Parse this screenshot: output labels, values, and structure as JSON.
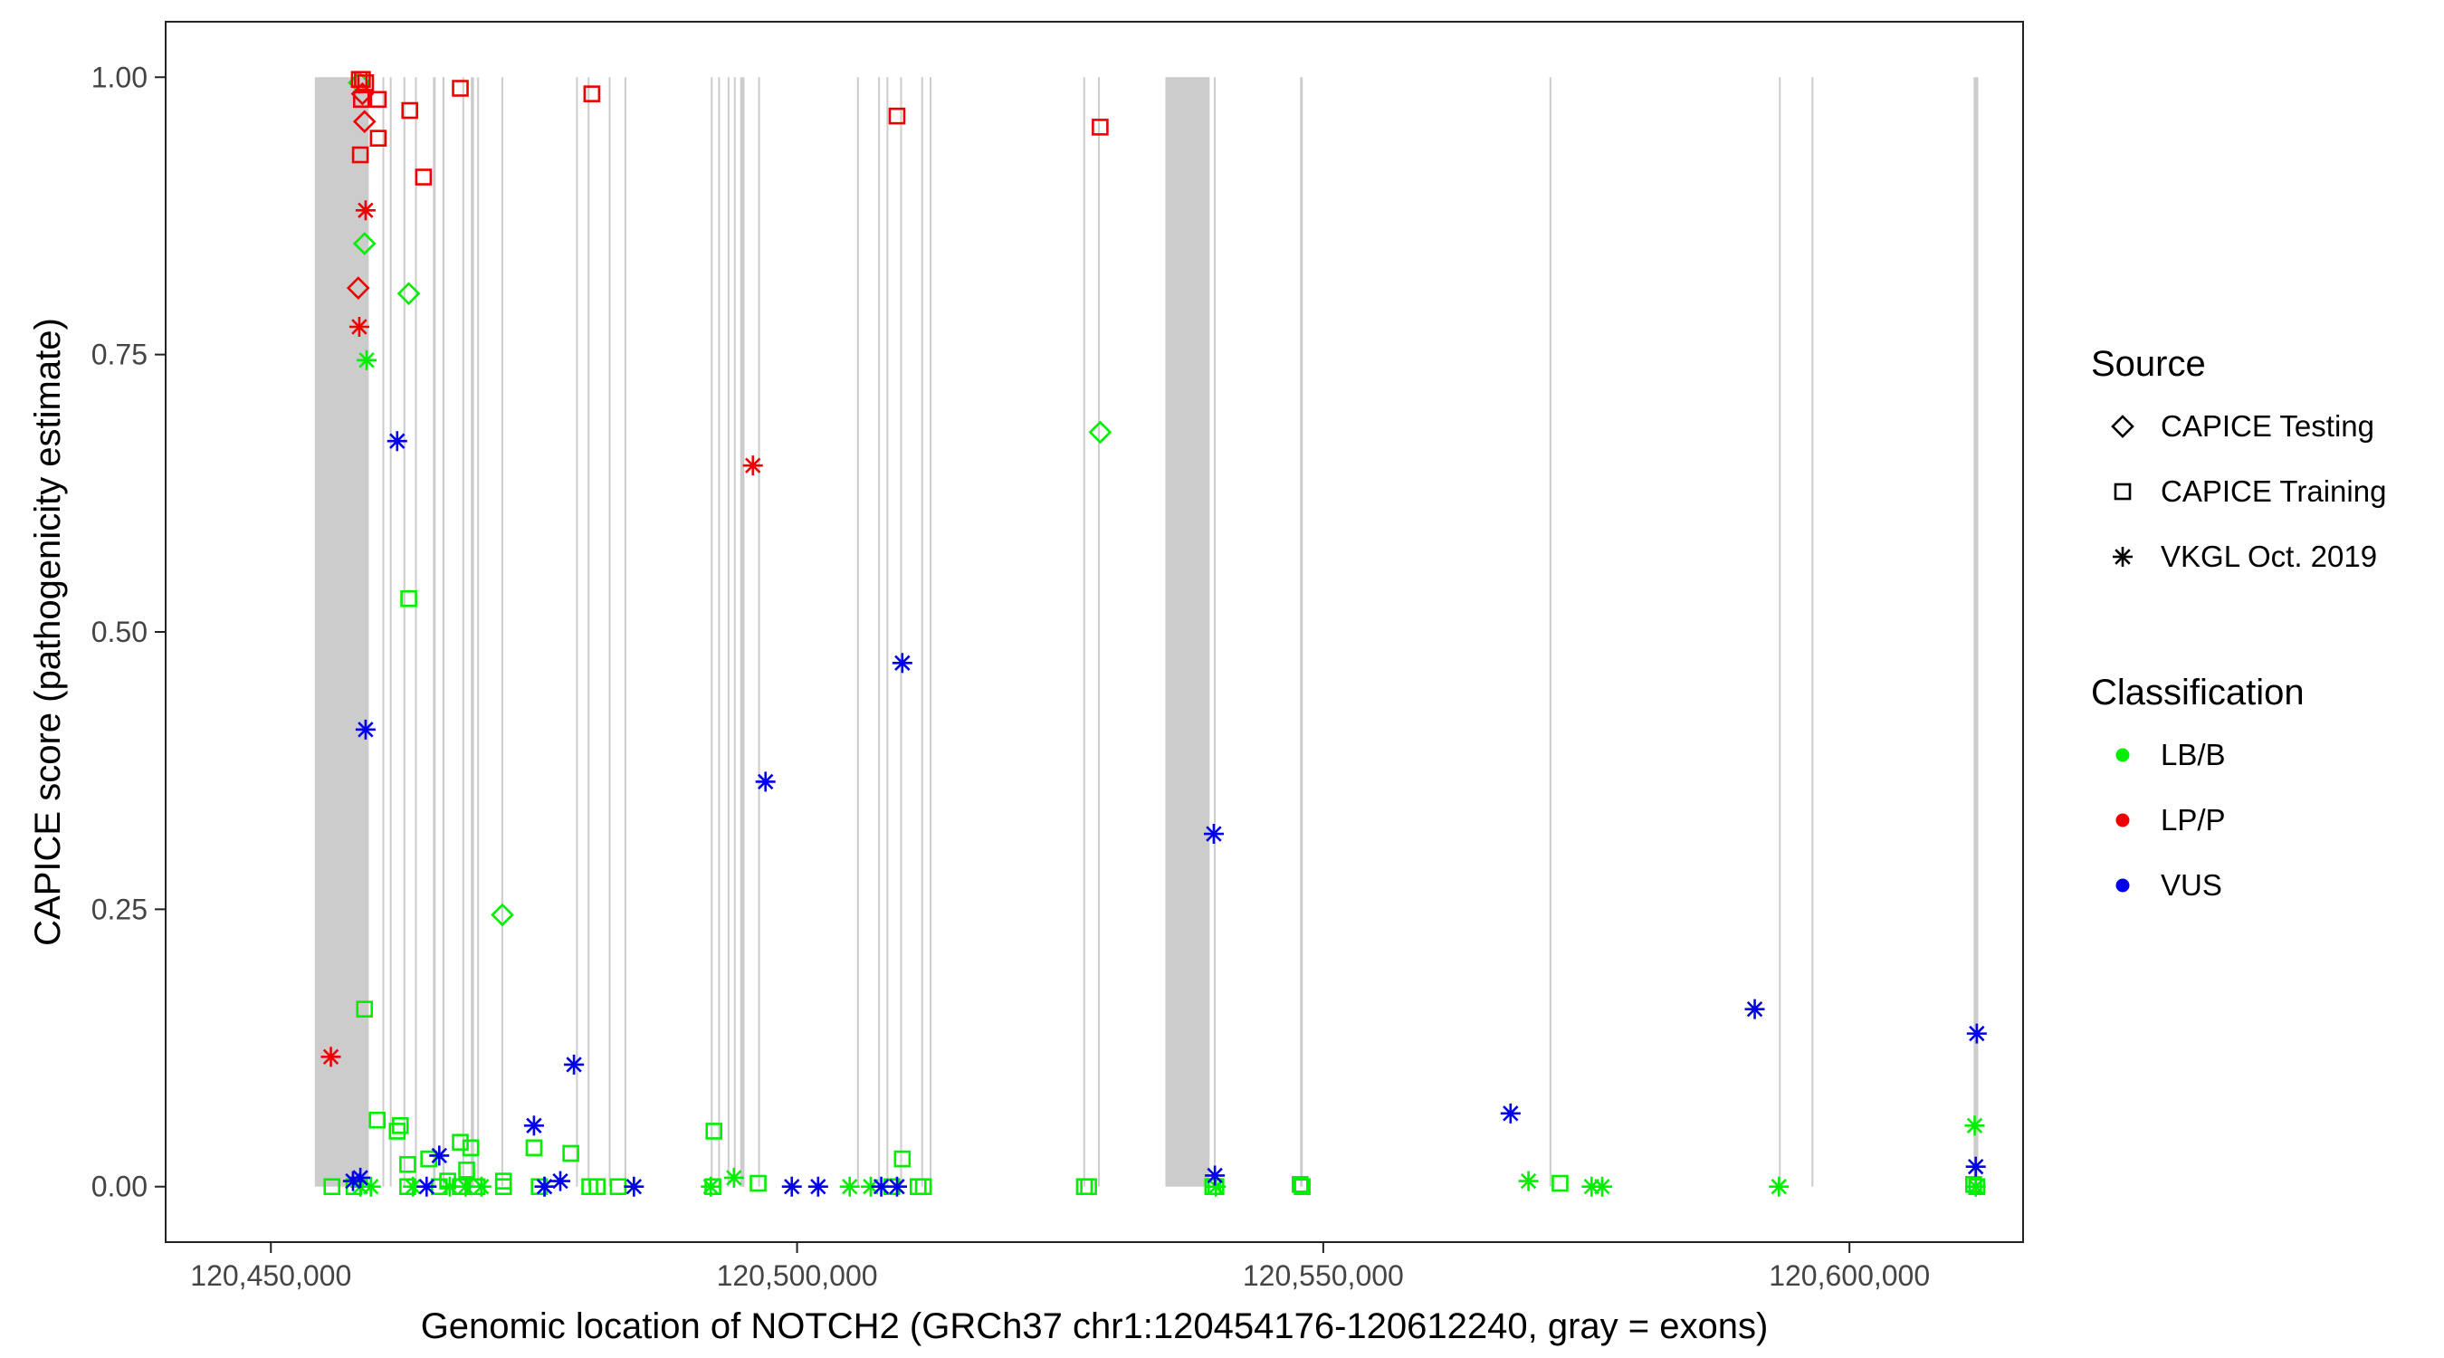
{
  "colors": {
    "LB/B": "#00ee00",
    "LP/P": "#ee0000",
    "VUS": "#0000ee",
    "exon": "#cccccc",
    "axis": "#222222",
    "tick_text": "#444444"
  },
  "chart_data": {
    "type": "scatter",
    "xlabel": "Genomic location of NOTCH2 (GRCh37 chr1:120454176-120612240, gray = exons)",
    "ylabel": "CAPICE score (pathogenicity estimate)",
    "xlim": [
      120440000,
      120616500
    ],
    "ylim": [
      -0.05,
      1.05
    ],
    "xticks": [
      {
        "value": 120450000,
        "label": "120,450,000"
      },
      {
        "value": 120500000,
        "label": "120,500,000"
      },
      {
        "value": 120550000,
        "label": "120,550,000"
      },
      {
        "value": 120600000,
        "label": "120,600,000"
      }
    ],
    "yticks": [
      {
        "value": 0,
        "label": "0.00"
      },
      {
        "value": 0.25,
        "label": "0.25"
      },
      {
        "value": 0.5,
        "label": "0.50"
      },
      {
        "value": 0.75,
        "label": "0.75"
      },
      {
        "value": 1,
        "label": "1.00"
      }
    ],
    "grid": false,
    "legend": {
      "placement": "right",
      "source_title": "Source",
      "source_items": [
        {
          "label": "CAPICE Testing",
          "shape": "diamond"
        },
        {
          "label": "CAPICE Training",
          "shape": "square"
        },
        {
          "label": "VKGL Oct. 2019",
          "shape": "asterisk"
        }
      ],
      "class_title": "Classification",
      "class_items": [
        {
          "label": "LB/B"
        },
        {
          "label": "LP/P"
        },
        {
          "label": "VUS"
        }
      ]
    },
    "exons": [
      [
        120454176,
        120459300
      ],
      [
        120460600,
        120460750
      ],
      [
        120461300,
        120461450
      ],
      [
        120462600,
        120462750
      ],
      [
        120463700,
        120463850
      ],
      [
        120465400,
        120465650
      ],
      [
        120466300,
        120466500
      ],
      [
        120468200,
        120468350
      ],
      [
        120469000,
        120469300
      ],
      [
        120469600,
        120469750
      ],
      [
        120471900,
        120472050
      ],
      [
        120479000,
        120479150
      ],
      [
        120480100,
        120480250
      ],
      [
        120482100,
        120482250
      ],
      [
        120483600,
        120483750
      ],
      [
        120491800,
        120491950
      ],
      [
        120492500,
        120492650
      ],
      [
        120493400,
        120493550
      ],
      [
        120494000,
        120494150
      ],
      [
        120494600,
        120495000
      ],
      [
        120496300,
        120496450
      ],
      [
        120505700,
        120505850
      ],
      [
        120507700,
        120507850
      ],
      [
        120508500,
        120508650
      ],
      [
        120509800,
        120509950
      ],
      [
        120511800,
        120511950
      ],
      [
        120512600,
        120512750
      ],
      [
        120527200,
        120527350
      ],
      [
        120528600,
        120528750
      ],
      [
        120535000,
        120539200
      ],
      [
        120539600,
        120539750
      ],
      [
        120547800,
        120548050
      ],
      [
        120571500,
        120571650
      ],
      [
        120593300,
        120593450
      ],
      [
        120596400,
        120596550
      ],
      [
        120611800,
        120612240
      ]
    ],
    "series": [
      {
        "name": "CAPICE Testing",
        "shape": "diamond",
        "points": [
          {
            "x": 120458400,
            "y": 0.995,
            "c": "LB/B"
          },
          {
            "x": 120458700,
            "y": 0.985,
            "c": "LP/P"
          },
          {
            "x": 120458900,
            "y": 0.96,
            "c": "LP/P"
          },
          {
            "x": 120458300,
            "y": 0.81,
            "c": "LP/P"
          },
          {
            "x": 120458900,
            "y": 0.85,
            "c": "LB/B"
          },
          {
            "x": 120463100,
            "y": 0.805,
            "c": "LB/B"
          },
          {
            "x": 120472000,
            "y": 0.245,
            "c": "LB/B"
          },
          {
            "x": 120528800,
            "y": 0.68,
            "c": "LB/B"
          }
        ]
      },
      {
        "name": "CAPICE Training",
        "shape": "square",
        "points": [
          {
            "x": 120458400,
            "y": 0.998,
            "c": "LP/P"
          },
          {
            "x": 120458700,
            "y": 0.998,
            "c": "LP/P"
          },
          {
            "x": 120459000,
            "y": 0.995,
            "c": "LP/P"
          },
          {
            "x": 120458600,
            "y": 0.98,
            "c": "LP/P"
          },
          {
            "x": 120460200,
            "y": 0.98,
            "c": "LP/P"
          },
          {
            "x": 120463200,
            "y": 0.97,
            "c": "LP/P"
          },
          {
            "x": 120460200,
            "y": 0.945,
            "c": "LP/P"
          },
          {
            "x": 120458500,
            "y": 0.93,
            "c": "LP/P"
          },
          {
            "x": 120464500,
            "y": 0.91,
            "c": "LP/P"
          },
          {
            "x": 120468000,
            "y": 0.99,
            "c": "LP/P"
          },
          {
            "x": 120480500,
            "y": 0.985,
            "c": "LP/P"
          },
          {
            "x": 120509500,
            "y": 0.965,
            "c": "LP/P"
          },
          {
            "x": 120528800,
            "y": 0.955,
            "c": "LP/P"
          },
          {
            "x": 120458900,
            "y": 0.16,
            "c": "LB/B"
          },
          {
            "x": 120463100,
            "y": 0.53,
            "c": "LB/B"
          },
          {
            "x": 120460100,
            "y": 0.06,
            "c": "LB/B"
          },
          {
            "x": 120462000,
            "y": 0.05,
            "c": "LB/B"
          },
          {
            "x": 120462300,
            "y": 0.055,
            "c": "LB/B"
          },
          {
            "x": 120463000,
            "y": 0.02,
            "c": "LB/B"
          },
          {
            "x": 120465000,
            "y": 0.025,
            "c": "LB/B"
          },
          {
            "x": 120468000,
            "y": 0.04,
            "c": "LB/B"
          },
          {
            "x": 120469000,
            "y": 0.035,
            "c": "LB/B"
          },
          {
            "x": 120468600,
            "y": 0.015,
            "c": "LB/B"
          },
          {
            "x": 120475000,
            "y": 0.035,
            "c": "LB/B"
          },
          {
            "x": 120478500,
            "y": 0.03,
            "c": "LB/B"
          },
          {
            "x": 120492100,
            "y": 0.05,
            "c": "LB/B"
          },
          {
            "x": 120510000,
            "y": 0.025,
            "c": "LB/B"
          },
          {
            "x": 120466800,
            "y": 0.005,
            "c": "LB/B"
          },
          {
            "x": 120472100,
            "y": 0.005,
            "c": "LB/B"
          },
          {
            "x": 120455800,
            "y": 0.0,
            "c": "LB/B"
          },
          {
            "x": 120457900,
            "y": 0.0,
            "c": "LB/B"
          },
          {
            "x": 120463000,
            "y": 0.0,
            "c": "LB/B"
          },
          {
            "x": 120466000,
            "y": 0.0,
            "c": "LB/B"
          },
          {
            "x": 120468000,
            "y": 0.0,
            "c": "LB/B"
          },
          {
            "x": 120469600,
            "y": 0.0,
            "c": "LB/B"
          },
          {
            "x": 120472100,
            "y": 0.0,
            "c": "LB/B"
          },
          {
            "x": 120475500,
            "y": 0.0,
            "c": "LB/B"
          },
          {
            "x": 120480300,
            "y": 0.0,
            "c": "LB/B"
          },
          {
            "x": 120481000,
            "y": 0.0,
            "c": "LB/B"
          },
          {
            "x": 120483000,
            "y": 0.0,
            "c": "LB/B"
          },
          {
            "x": 120492000,
            "y": 0.0,
            "c": "LB/B"
          },
          {
            "x": 120496300,
            "y": 0.003,
            "c": "LB/B"
          },
          {
            "x": 120509000,
            "y": 0.0,
            "c": "LB/B"
          },
          {
            "x": 120511500,
            "y": 0.0,
            "c": "LB/B"
          },
          {
            "x": 120512000,
            "y": 0.0,
            "c": "LB/B"
          },
          {
            "x": 120527300,
            "y": 0.0,
            "c": "LB/B"
          },
          {
            "x": 120527700,
            "y": 0.0,
            "c": "LB/B"
          },
          {
            "x": 120539500,
            "y": 0.0,
            "c": "LB/B"
          },
          {
            "x": 120539800,
            "y": 0.0,
            "c": "LB/B"
          },
          {
            "x": 120547800,
            "y": 0.002,
            "c": "LB/B"
          },
          {
            "x": 120548000,
            "y": 0.0,
            "c": "LB/B"
          },
          {
            "x": 120572500,
            "y": 0.003,
            "c": "LB/B"
          },
          {
            "x": 120611800,
            "y": 0.002,
            "c": "LB/B"
          },
          {
            "x": 120612100,
            "y": 0.0,
            "c": "LB/B"
          }
        ]
      },
      {
        "name": "VKGL Oct. 2019",
        "shape": "asterisk",
        "points": [
          {
            "x": 120459000,
            "y": 0.88,
            "c": "LP/P"
          },
          {
            "x": 120458400,
            "y": 0.775,
            "c": "LP/P"
          },
          {
            "x": 120495800,
            "y": 0.65,
            "c": "LP/P"
          },
          {
            "x": 120455700,
            "y": 0.117,
            "c": "LP/P"
          },
          {
            "x": 120459100,
            "y": 0.745,
            "c": "LB/B"
          },
          {
            "x": 120494000,
            "y": 0.008,
            "c": "LB/B"
          },
          {
            "x": 120569500,
            "y": 0.005,
            "c": "LB/B"
          },
          {
            "x": 120575500,
            "y": 0.0,
            "c": "LB/B"
          },
          {
            "x": 120576500,
            "y": 0.0,
            "c": "LB/B"
          },
          {
            "x": 120593300,
            "y": 0.0,
            "c": "LB/B"
          },
          {
            "x": 120611900,
            "y": 0.055,
            "c": "LB/B"
          },
          {
            "x": 120458500,
            "y": 0.0,
            "c": "LB/B"
          },
          {
            "x": 120459500,
            "y": 0.0,
            "c": "LB/B"
          },
          {
            "x": 120463500,
            "y": 0.0,
            "c": "LB/B"
          },
          {
            "x": 120467000,
            "y": 0.0,
            "c": "LB/B"
          },
          {
            "x": 120468500,
            "y": 0.0,
            "c": "LB/B"
          },
          {
            "x": 120470000,
            "y": 0.0,
            "c": "LB/B"
          },
          {
            "x": 120476000,
            "y": 0.0,
            "c": "LB/B"
          },
          {
            "x": 120491800,
            "y": 0.0,
            "c": "LB/B"
          },
          {
            "x": 120505000,
            "y": 0.0,
            "c": "LB/B"
          },
          {
            "x": 120507000,
            "y": 0.0,
            "c": "LB/B"
          },
          {
            "x": 120539800,
            "y": 0.0,
            "c": "LB/B"
          },
          {
            "x": 120612000,
            "y": 0.0,
            "c": "LB/B"
          },
          {
            "x": 120462000,
            "y": 0.672,
            "c": "VUS"
          },
          {
            "x": 120459000,
            "y": 0.412,
            "c": "VUS"
          },
          {
            "x": 120497000,
            "y": 0.365,
            "c": "VUS"
          },
          {
            "x": 120510000,
            "y": 0.472,
            "c": "VUS"
          },
          {
            "x": 120539600,
            "y": 0.318,
            "c": "VUS"
          },
          {
            "x": 120478800,
            "y": 0.11,
            "c": "VUS"
          },
          {
            "x": 120475000,
            "y": 0.055,
            "c": "VUS"
          },
          {
            "x": 120567800,
            "y": 0.066,
            "c": "VUS"
          },
          {
            "x": 120591000,
            "y": 0.16,
            "c": "VUS"
          },
          {
            "x": 120612100,
            "y": 0.138,
            "c": "VUS"
          },
          {
            "x": 120612000,
            "y": 0.018,
            "c": "VUS"
          },
          {
            "x": 120466000,
            "y": 0.028,
            "c": "VUS"
          },
          {
            "x": 120539700,
            "y": 0.01,
            "c": "VUS"
          },
          {
            "x": 120457800,
            "y": 0.005,
            "c": "VUS"
          },
          {
            "x": 120458500,
            "y": 0.008,
            "c": "VUS"
          },
          {
            "x": 120464800,
            "y": 0.0,
            "c": "VUS"
          },
          {
            "x": 120477500,
            "y": 0.005,
            "c": "VUS"
          },
          {
            "x": 120476000,
            "y": 0.0,
            "c": "VUS"
          },
          {
            "x": 120484500,
            "y": 0.0,
            "c": "VUS"
          },
          {
            "x": 120499500,
            "y": 0.0,
            "c": "VUS"
          },
          {
            "x": 120502000,
            "y": 0.0,
            "c": "VUS"
          },
          {
            "x": 120508000,
            "y": 0.0,
            "c": "VUS"
          },
          {
            "x": 120509500,
            "y": 0.0,
            "c": "VUS"
          }
        ]
      }
    ]
  }
}
